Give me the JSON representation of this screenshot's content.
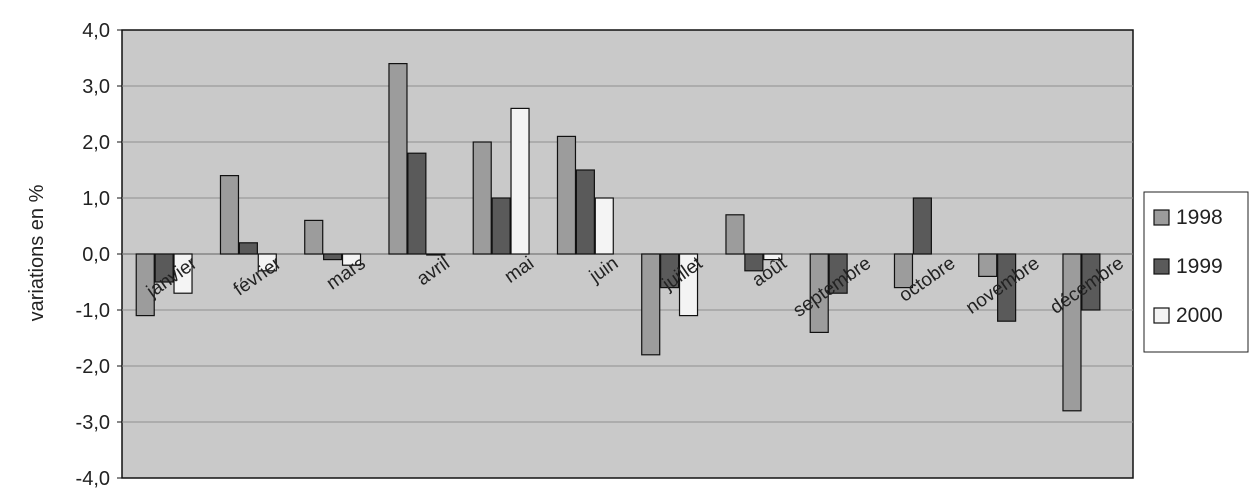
{
  "chart_data": {
    "type": "bar",
    "title": "",
    "xlabel": "",
    "ylabel": "variations en %",
    "ylim": [
      -4,
      4
    ],
    "yticks": [
      "-4,0",
      "-3,0",
      "-2,0",
      "-1,0",
      "0,0",
      "1,0",
      "2,0",
      "3,0",
      "4,0"
    ],
    "grid": true,
    "legend_position": "right",
    "categories": [
      "janvier",
      "février",
      "mars",
      "avril",
      "mai",
      "juin",
      "juillet",
      "août",
      "septembre",
      "octobre",
      "novembre",
      "décembre"
    ],
    "series": [
      {
        "name": "1998",
        "color": "#9c9c9c",
        "values": [
          -1.1,
          1.4,
          0.6,
          3.4,
          2.0,
          2.1,
          -1.8,
          0.7,
          -1.4,
          -0.6,
          -0.4,
          -2.8
        ]
      },
      {
        "name": "1999",
        "color": "#5a5a5a",
        "values": [
          -0.5,
          0.2,
          -0.1,
          1.8,
          1.0,
          1.5,
          -0.6,
          -0.3,
          -0.7,
          1.0,
          -1.2,
          -1.0
        ]
      },
      {
        "name": "2000",
        "color": "#f4f4f4",
        "values": [
          -0.7,
          -0.3,
          -0.2,
          0.0,
          2.6,
          1.0,
          -1.1,
          -0.1,
          null,
          null,
          null,
          null
        ]
      }
    ],
    "background_color": "#c9c9c9"
  }
}
